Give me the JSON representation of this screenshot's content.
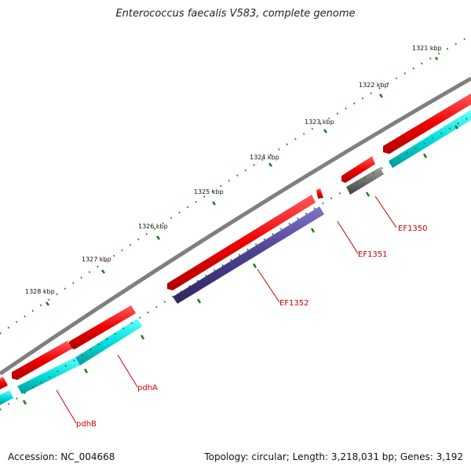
{
  "title": "Enterococcus faecalis V583, complete genome",
  "footer": {
    "accession": "Accession: NC_004668",
    "summary": "Topology: circular; Length: 3,218,031 bp; Genes: 3,192"
  },
  "scale": {
    "tick_labels": [
      "1321 kbp",
      "1322 kbp",
      "1323 kbp",
      "1324 kbp",
      "1325 kbp",
      "1326 kbp",
      "1327 kbp",
      "1328 kbp"
    ]
  },
  "genes": [
    {
      "name": "EF1350",
      "labeled": true
    },
    {
      "name": "EF1351",
      "labeled": true
    },
    {
      "name": "EF1352",
      "labeled": true
    },
    {
      "name": "pdhA",
      "labeled": true
    },
    {
      "name": "pdhB",
      "labeled": true
    }
  ],
  "colors": {
    "backbone": "#7f7f7f",
    "forward_cds": "#ee0000",
    "cog_cyan": "#00cccc",
    "cog_purple": "#4a3f8e",
    "cog_gray": "#6e6e6e",
    "tick": "#1a7a1a",
    "label": "#cc0000"
  }
}
